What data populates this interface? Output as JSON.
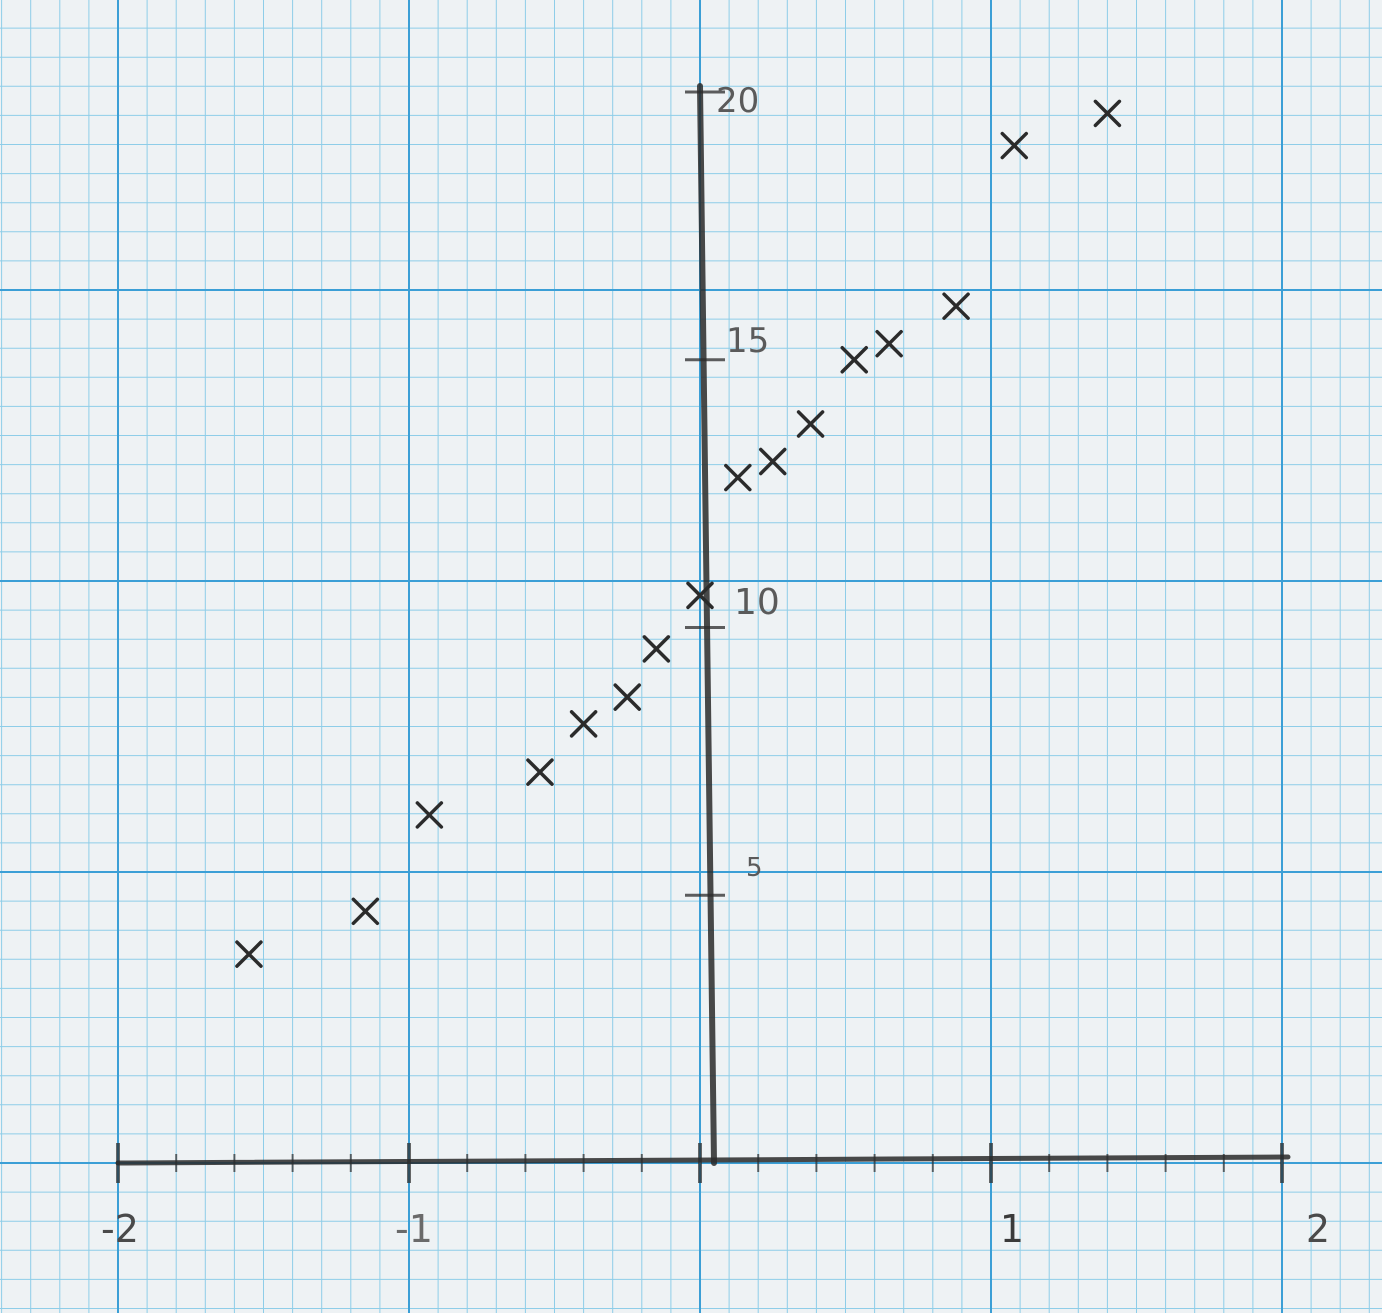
{
  "chart_data": {
    "type": "scatter",
    "title": "",
    "xlabel": "",
    "ylabel": "",
    "xlim": [
      -2,
      2
    ],
    "ylim": [
      0,
      20
    ],
    "grid": true,
    "x_tick_labels": [
      "-2",
      "-1",
      "1",
      "2"
    ],
    "y_tick_labels": [
      "5",
      "10",
      "15",
      "20"
    ],
    "points": [
      {
        "x": -1.55,
        "y": 3.9
      },
      {
        "x": -1.15,
        "y": 4.7
      },
      {
        "x": -0.93,
        "y": 6.5
      },
      {
        "x": -0.55,
        "y": 7.3
      },
      {
        "x": -0.4,
        "y": 8.2
      },
      {
        "x": -0.25,
        "y": 8.7
      },
      {
        "x": -0.15,
        "y": 9.6
      },
      {
        "x": 0.0,
        "y": 10.6
      },
      {
        "x": 0.13,
        "y": 12.8
      },
      {
        "x": 0.25,
        "y": 13.1
      },
      {
        "x": 0.38,
        "y": 13.8
      },
      {
        "x": 0.53,
        "y": 15.0
      },
      {
        "x": 0.65,
        "y": 15.3
      },
      {
        "x": 0.88,
        "y": 16.0
      },
      {
        "x": 1.08,
        "y": 19.0
      },
      {
        "x": 1.4,
        "y": 19.6
      }
    ]
  },
  "colors": {
    "paper": "#eef2f4",
    "grid_minor": "#8ecde8",
    "grid_major": "#3b9fd6",
    "pencil": "#2b2b2b"
  }
}
